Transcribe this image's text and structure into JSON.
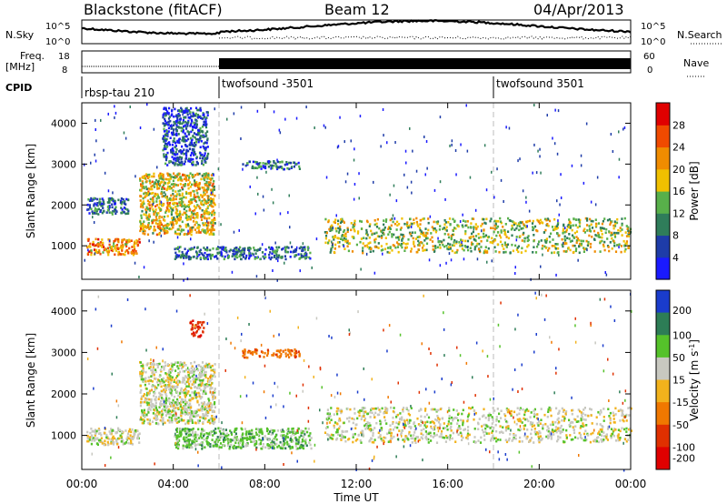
{
  "header": {
    "station": "Blackstone (fitACF)",
    "beam": "Beam 12",
    "date": "04/Apr/2013"
  },
  "panel_labels": {
    "nsky": "N.Sky",
    "nsearch": "N.Search",
    "freq": "Freq.",
    "freq_unit": "[MHz]",
    "nave": "Nave",
    "cpid": "CPID"
  },
  "top_panel_ticks": {
    "noise_left": [
      "10^5",
      "10^0"
    ],
    "noise_right": [
      "10^5",
      "10^0"
    ],
    "freq_left": [
      "18",
      "8"
    ],
    "nave_right": [
      "60",
      "0"
    ]
  },
  "cpid_segments": [
    {
      "label": "rbsp-tau 210",
      "start_hour": 0
    },
    {
      "label": "twofsound -3501",
      "start_hour": 6
    },
    {
      "label": "twofsound 3501",
      "start_hour": 18
    }
  ],
  "colors": {
    "power_scale": [
      "#1a1aff",
      "#1e3ca8",
      "#2f7d5a",
      "#58b04a",
      "#f0c000",
      "#f08c00",
      "#f04a00",
      "#e00000"
    ],
    "velocity_scale": [
      "#1a3ccc",
      "#2d7d56",
      "#55c22a",
      "#c8c8c0",
      "#f2b21c",
      "#f07800",
      "#e03000",
      "#e00000"
    ]
  },
  "chart_data": [
    {
      "type": "heatmap",
      "title": "",
      "xlabel": "",
      "ylabel": "Slant Range [km]",
      "xlim": [
        0,
        24
      ],
      "ylim": [
        180,
        4500
      ],
      "yticks": [
        "4000",
        "3000",
        "2000",
        "1000"
      ],
      "colorbar_label": "Power [dB]",
      "colorbar_ticks": [
        "28",
        "24",
        "20",
        "16",
        "12",
        "8",
        "4"
      ],
      "colorbar_range": [
        0,
        32
      ],
      "features": [
        {
          "x_hours": [
            0.2,
            2.5
          ],
          "range_km": [
            800,
            1200
          ],
          "power_db": 22
        },
        {
          "x_hours": [
            2.5,
            5.8
          ],
          "range_km": [
            1300,
            2800
          ],
          "power_db": 18
        },
        {
          "x_hours": [
            0.2,
            2.0
          ],
          "range_km": [
            1800,
            2200
          ],
          "power_db": 8
        },
        {
          "x_hours": [
            3.5,
            5.5
          ],
          "range_km": [
            3000,
            4400
          ],
          "power_db": 6
        },
        {
          "x_hours": [
            7.0,
            9.5
          ],
          "range_km": [
            2900,
            3100
          ],
          "power_db": 9
        },
        {
          "x_hours": [
            4.0,
            10.0
          ],
          "range_km": [
            700,
            1000
          ],
          "power_db": 8
        },
        {
          "x_hours": [
            10.6,
            24.0
          ],
          "range_km": [
            850,
            1700
          ],
          "power_db": 16
        }
      ]
    },
    {
      "type": "heatmap",
      "title": "",
      "xlabel": "Time UT",
      "ylabel": "Slant Range [km]",
      "xlim": [
        0,
        24
      ],
      "ylim": [
        180,
        4500
      ],
      "yticks": [
        "4000",
        "3000",
        "2000",
        "1000"
      ],
      "xticks": [
        "00:00",
        "04:00",
        "08:00",
        "12:00",
        "16:00",
        "20:00",
        "00:00"
      ],
      "colorbar_label": "Velocity [m s^-1]",
      "colorbar_ticks": [
        "200",
        "100",
        "50",
        "15",
        "-15",
        "-50",
        "-100",
        "-200"
      ],
      "features": [
        {
          "x_hours": [
            0.2,
            2.5
          ],
          "range_km": [
            800,
            1200
          ],
          "velocity_ms": 0
        },
        {
          "x_hours": [
            2.5,
            5.8
          ],
          "range_km": [
            1300,
            2800
          ],
          "velocity_ms": 0
        },
        {
          "x_hours": [
            4.7,
            5.3
          ],
          "range_km": [
            3400,
            3800
          ],
          "velocity_ms": -180
        },
        {
          "x_hours": [
            7.0,
            9.5
          ],
          "range_km": [
            2900,
            3100
          ],
          "velocity_ms": -80
        },
        {
          "x_hours": [
            4.0,
            10.0
          ],
          "range_km": [
            700,
            1200
          ],
          "velocity_ms": 30
        },
        {
          "x_hours": [
            10.6,
            24.0
          ],
          "range_km": [
            850,
            1700
          ],
          "velocity_ms": 0
        }
      ]
    }
  ]
}
